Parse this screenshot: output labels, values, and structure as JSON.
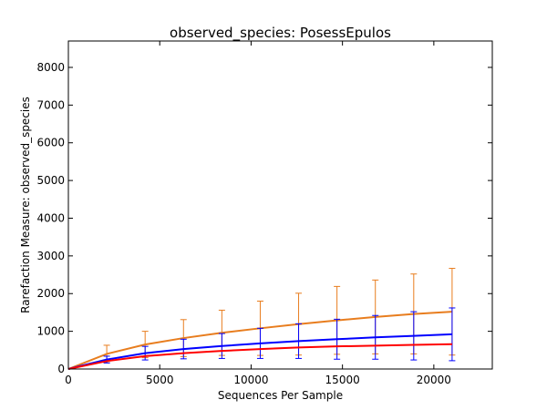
{
  "chart_data": {
    "type": "line",
    "title": "observed_species: PosessEpulos",
    "xlabel": "Sequences Per Sample",
    "ylabel": "Rarefaction Measure: observed_species",
    "xlim": [
      0,
      23200
    ],
    "ylim": [
      0,
      8700
    ],
    "xticks": [
      0,
      5000,
      10000,
      15000,
      20000
    ],
    "yticks": [
      0,
      1000,
      2000,
      3000,
      4000,
      5000,
      6000,
      7000,
      8000
    ],
    "grid": false,
    "legend": "none",
    "x": [
      0,
      2100,
      4200,
      6300,
      8400,
      10500,
      12600,
      14700,
      16800,
      18900,
      21000
    ],
    "series": [
      {
        "color": "#e87d1e",
        "values": [
          0,
          400,
          650,
          820,
          960,
          1080,
          1190,
          1290,
          1380,
          1460,
          1520
        ],
        "errors": [
          0,
          230,
          350,
          490,
          600,
          720,
          820,
          900,
          980,
          1060,
          1150
        ]
      },
      {
        "color": "#0000ff",
        "values": [
          0,
          250,
          420,
          530,
          610,
          680,
          740,
          790,
          840,
          880,
          920
        ],
        "errors": [
          0,
          90,
          180,
          260,
          330,
          400,
          460,
          530,
          580,
          640,
          700
        ]
      },
      {
        "color": "#ff0000",
        "values": [
          0,
          210,
          340,
          420,
          480,
          530,
          570,
          600,
          620,
          640,
          660
        ],
        "errors": [
          0,
          0,
          0,
          0,
          0,
          0,
          0,
          0,
          0,
          0,
          0
        ]
      }
    ]
  }
}
